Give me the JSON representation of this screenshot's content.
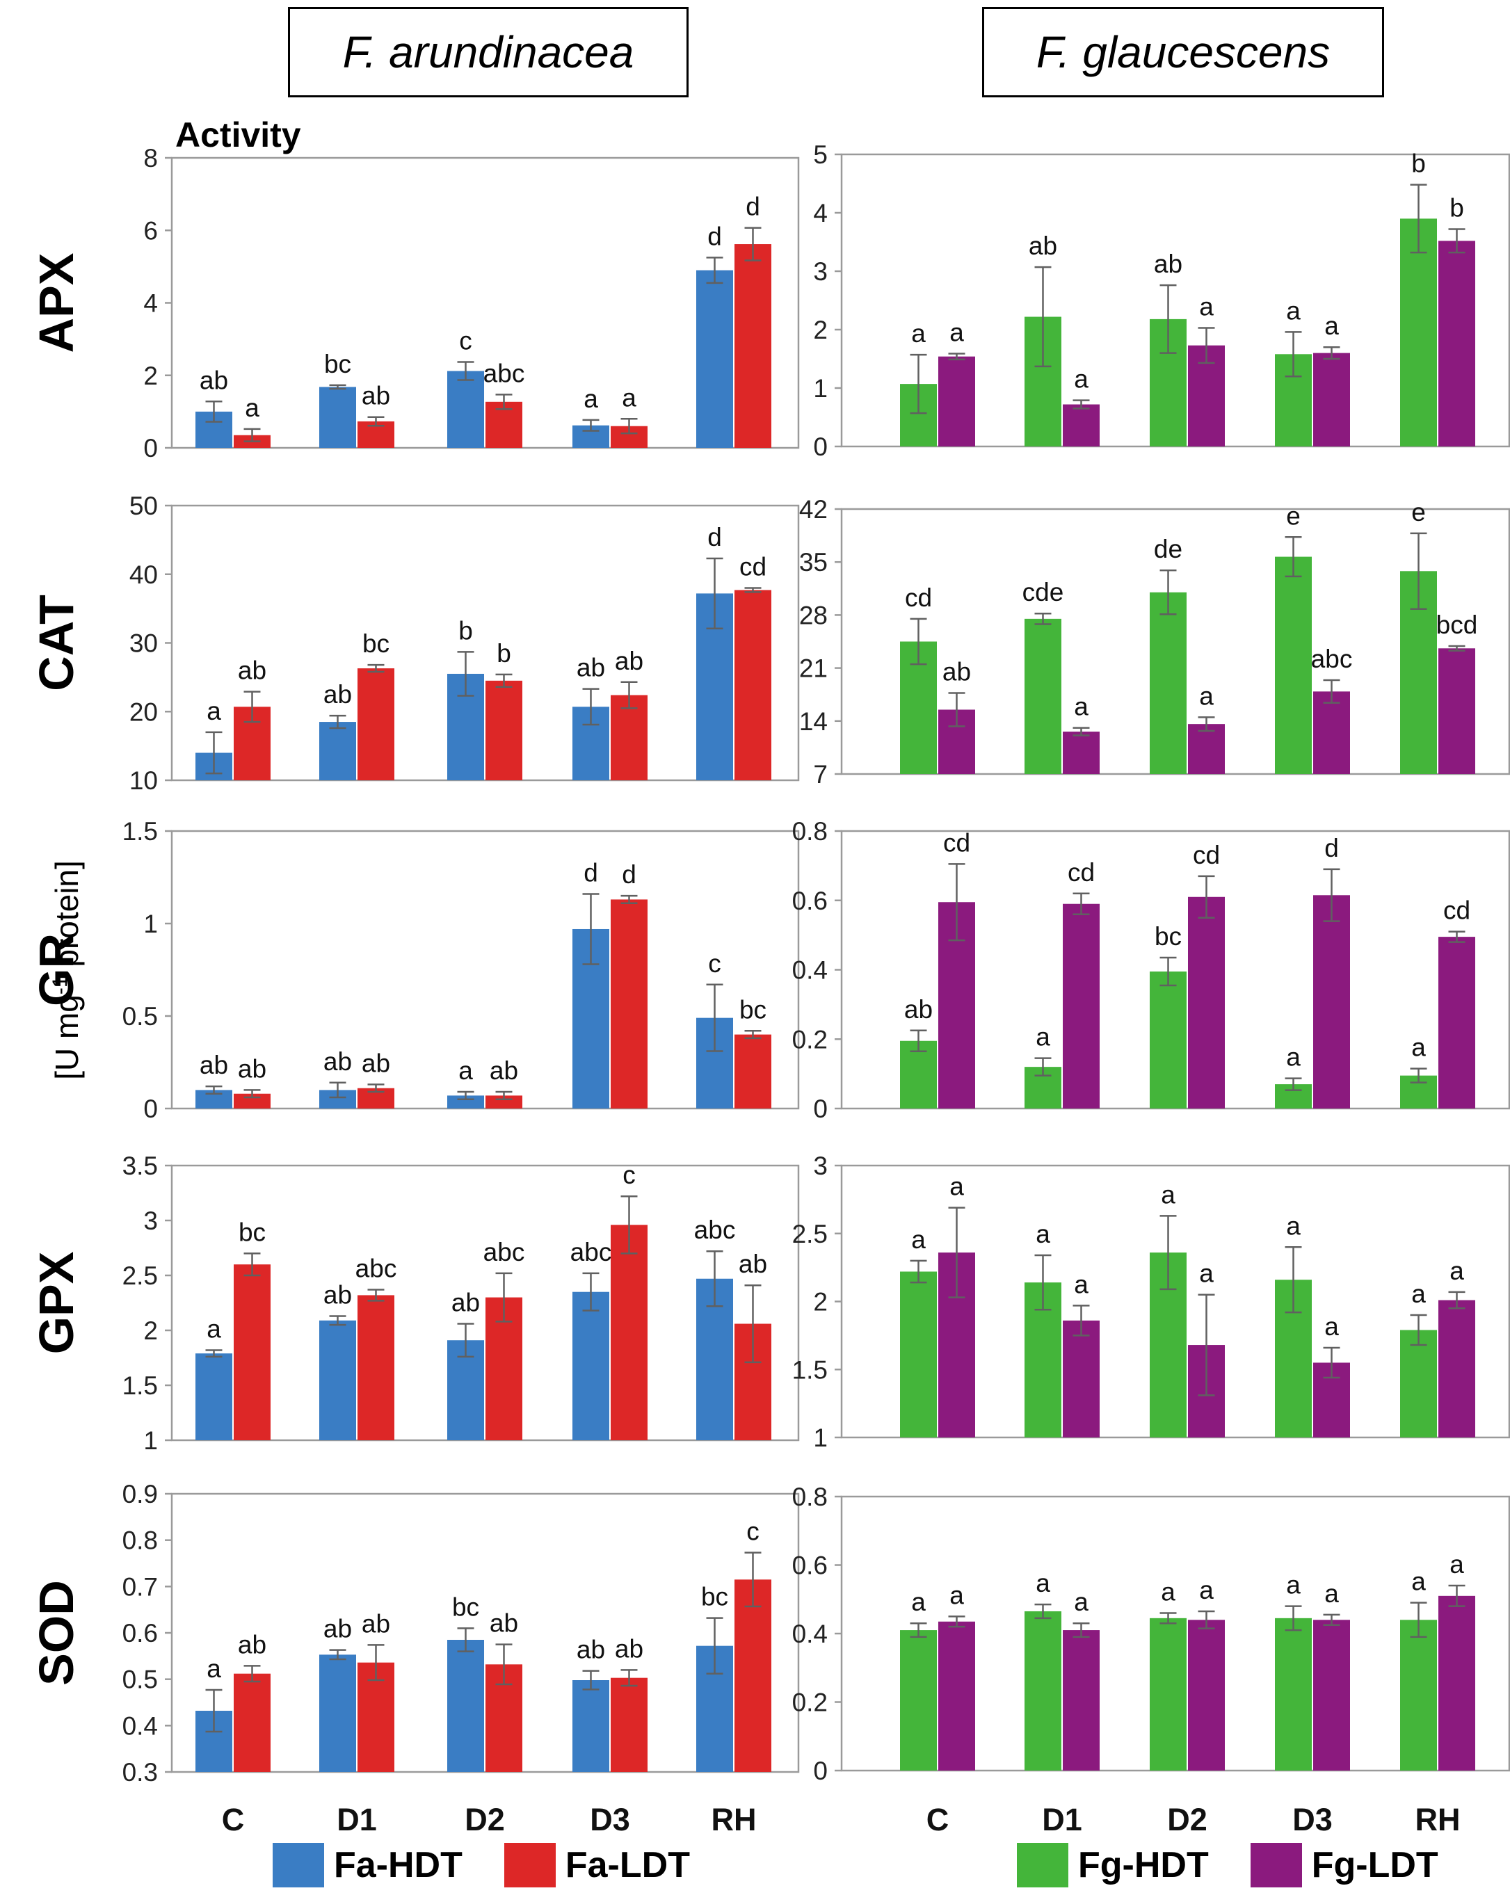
{
  "species": [
    "F. arundinacea",
    "F. glaucescens"
  ],
  "activity_label": "Activity",
  "unit_label": "[U mg-1 protein]",
  "unit_parts": {
    "pre": "[U mg",
    "sup": "-1",
    "post": " protein]"
  },
  "colors": {
    "fa_hdt": "#3a7dc4",
    "fa_ldt": "#dd2727",
    "fg_hdt": "#44b53a",
    "fg_ldt": "#8b1a7e",
    "axis": "#9a9a9a",
    "error": "#606060"
  },
  "legend": [
    {
      "label": "Fa-HDT",
      "color": "#3a7dc4"
    },
    {
      "label": "Fa-LDT",
      "color": "#dd2727"
    },
    {
      "label": "Fg-HDT",
      "color": "#44b53a"
    },
    {
      "label": "Fg-LDT",
      "color": "#8b1a7e"
    }
  ],
  "chart_data": [
    {
      "type": "bar",
      "enzyme": "APX",
      "species": "F. arundinacea",
      "categories": [
        "C",
        "D1",
        "D2",
        "D3",
        "RH"
      ],
      "ylim": [
        0,
        8
      ],
      "yticks": [
        "0",
        "2",
        "4",
        "6",
        "8"
      ],
      "series": [
        {
          "name": "Fa-HDT",
          "values": [
            1.0,
            1.68,
            2.12,
            0.62,
            4.9
          ],
          "errors": [
            0.28,
            0.05,
            0.25,
            0.15,
            0.35
          ],
          "letters": [
            "ab",
            "bc",
            "c",
            "a",
            "d"
          ]
        },
        {
          "name": "Fa-LDT",
          "values": [
            0.35,
            0.73,
            1.27,
            0.6,
            5.62
          ],
          "errors": [
            0.17,
            0.12,
            0.2,
            0.2,
            0.45
          ],
          "letters": [
            "a",
            "ab",
            "abc",
            "a",
            "d"
          ]
        }
      ]
    },
    {
      "type": "bar",
      "enzyme": "APX",
      "species": "F. glaucescens",
      "categories": [
        "C",
        "D1",
        "D2",
        "D3",
        "RH"
      ],
      "ylim": [
        0,
        5
      ],
      "yticks": [
        "0",
        "1",
        "2",
        "3",
        "4",
        "5"
      ],
      "series": [
        {
          "name": "Fg-HDT",
          "values": [
            1.07,
            2.22,
            2.18,
            1.58,
            3.9
          ],
          "errors": [
            0.5,
            0.85,
            0.58,
            0.38,
            0.58
          ],
          "letters": [
            "a",
            "ab",
            "ab",
            "a",
            "b"
          ]
        },
        {
          "name": "Fg-LDT",
          "values": [
            1.54,
            0.72,
            1.73,
            1.6,
            3.52
          ],
          "errors": [
            0.05,
            0.07,
            0.3,
            0.1,
            0.2
          ],
          "letters": [
            "a",
            "a",
            "a",
            "a",
            "b"
          ]
        }
      ]
    },
    {
      "type": "bar",
      "enzyme": "CAT",
      "species": "F. arundinacea",
      "categories": [
        "C",
        "D1",
        "D2",
        "D3",
        "RH"
      ],
      "ylim": [
        10,
        50
      ],
      "yticks": [
        "10",
        "20",
        "30",
        "40",
        "50"
      ],
      "series": [
        {
          "name": "Fa-HDT",
          "values": [
            14.0,
            18.5,
            25.5,
            20.7,
            37.2
          ],
          "errors": [
            3.0,
            0.9,
            3.2,
            2.6,
            5.1
          ],
          "letters": [
            "a",
            "ab",
            "b",
            "ab",
            "d"
          ]
        },
        {
          "name": "Fa-LDT",
          "values": [
            20.7,
            26.3,
            24.5,
            22.4,
            37.7
          ],
          "errors": [
            2.2,
            0.5,
            0.9,
            1.9,
            0.3
          ],
          "letters": [
            "ab",
            "bc",
            "b",
            "ab",
            "cd"
          ]
        }
      ]
    },
    {
      "type": "bar",
      "enzyme": "CAT",
      "species": "F. glaucescens",
      "categories": [
        "C",
        "D1",
        "D2",
        "D3",
        "RH"
      ],
      "ylim": [
        7,
        42
      ],
      "yticks": [
        "7",
        "14",
        "21",
        "28",
        "35",
        "42"
      ],
      "series": [
        {
          "name": "Fg-HDT",
          "values": [
            24.5,
            27.5,
            31.0,
            35.7,
            33.8
          ],
          "errors": [
            3.0,
            0.7,
            2.9,
            2.6,
            5.0
          ],
          "letters": [
            "cd",
            "cde",
            "de",
            "e",
            "e"
          ]
        },
        {
          "name": "Fg-LDT",
          "values": [
            15.5,
            12.6,
            13.6,
            17.9,
            23.6
          ],
          "errors": [
            2.2,
            0.5,
            0.9,
            1.5,
            0.3
          ],
          "letters": [
            "ab",
            "a",
            "a",
            "abc",
            "bcd"
          ]
        }
      ]
    },
    {
      "type": "bar",
      "enzyme": "GR",
      "species": "F. arundinacea",
      "categories": [
        "C",
        "D1",
        "D2",
        "D3",
        "RH"
      ],
      "ylim": [
        0,
        1.5
      ],
      "yticks": [
        "0",
        "0.5",
        "1",
        "1.5"
      ],
      "series": [
        {
          "name": "Fa-HDT",
          "values": [
            0.1,
            0.1,
            0.07,
            0.97,
            0.49
          ],
          "errors": [
            0.02,
            0.04,
            0.02,
            0.19,
            0.18
          ],
          "letters": [
            "ab",
            "ab",
            "a",
            "d",
            "c"
          ]
        },
        {
          "name": "Fa-LDT",
          "values": [
            0.08,
            0.11,
            0.07,
            1.13,
            0.4
          ],
          "errors": [
            0.02,
            0.02,
            0.02,
            0.02,
            0.02
          ],
          "letters": [
            "ab",
            "ab",
            "ab",
            "d",
            "bc"
          ]
        }
      ]
    },
    {
      "type": "bar",
      "enzyme": "GR",
      "species": "F. glaucescens",
      "categories": [
        "C",
        "D1",
        "D2",
        "D3",
        "RH"
      ],
      "ylim": [
        0,
        0.8
      ],
      "yticks": [
        "0",
        "0.2",
        "0.4",
        "0.6",
        "0.8"
      ],
      "series": [
        {
          "name": "Fg-HDT",
          "values": [
            0.195,
            0.12,
            0.395,
            0.07,
            0.095
          ],
          "errors": [
            0.03,
            0.025,
            0.04,
            0.017,
            0.02
          ],
          "letters": [
            "ab",
            "a",
            "bc",
            "a",
            "a"
          ]
        },
        {
          "name": "Fg-LDT",
          "values": [
            0.595,
            0.59,
            0.61,
            0.615,
            0.495
          ],
          "errors": [
            0.11,
            0.03,
            0.06,
            0.075,
            0.015
          ],
          "letters": [
            "cd",
            "cd",
            "cd",
            "d",
            "cd"
          ]
        }
      ]
    },
    {
      "type": "bar",
      "enzyme": "GPX",
      "species": "F. arundinacea",
      "categories": [
        "C",
        "D1",
        "D2",
        "D3",
        "RH"
      ],
      "ylim": [
        1,
        3.5
      ],
      "yticks": [
        "1",
        "1.5",
        "2",
        "2.5",
        "3",
        "3.5"
      ],
      "series": [
        {
          "name": "Fa-HDT",
          "values": [
            1.79,
            2.09,
            1.91,
            2.35,
            2.47
          ],
          "errors": [
            0.03,
            0.04,
            0.15,
            0.17,
            0.25
          ],
          "letters": [
            "a",
            "ab",
            "ab",
            "abc",
            "abc"
          ]
        },
        {
          "name": "Fa-LDT",
          "values": [
            2.6,
            2.32,
            2.3,
            2.96,
            2.06
          ],
          "errors": [
            0.1,
            0.05,
            0.22,
            0.26,
            0.35
          ],
          "letters": [
            "bc",
            "abc",
            "abc",
            "c",
            "ab"
          ]
        }
      ]
    },
    {
      "type": "bar",
      "enzyme": "GPX",
      "species": "F. glaucescens",
      "categories": [
        "C",
        "D1",
        "D2",
        "D3",
        "RH"
      ],
      "ylim": [
        1,
        3
      ],
      "yticks": [
        "1",
        "1.5",
        "2",
        "2.5",
        "3"
      ],
      "series": [
        {
          "name": "Fg-HDT",
          "values": [
            2.22,
            2.14,
            2.36,
            2.16,
            1.79
          ],
          "errors": [
            0.08,
            0.2,
            0.27,
            0.24,
            0.11
          ],
          "letters": [
            "a",
            "a",
            "a",
            "a",
            "a"
          ]
        },
        {
          "name": "Fg-LDT",
          "values": [
            2.36,
            1.86,
            1.68,
            1.55,
            2.01
          ],
          "errors": [
            0.33,
            0.11,
            0.37,
            0.11,
            0.06
          ],
          "letters": [
            "a",
            "a",
            "a",
            "a",
            "a"
          ]
        }
      ]
    },
    {
      "type": "bar",
      "enzyme": "SOD",
      "species": "F. arundinacea",
      "categories": [
        "C",
        "D1",
        "D2",
        "D3",
        "RH"
      ],
      "ylim": [
        0.3,
        0.9
      ],
      "yticks": [
        "0.3",
        "0.4",
        "0.5",
        "0.6",
        "0.7",
        "0.8",
        "0.9"
      ],
      "series": [
        {
          "name": "Fa-HDT",
          "values": [
            0.432,
            0.553,
            0.585,
            0.498,
            0.572
          ],
          "errors": [
            0.045,
            0.01,
            0.025,
            0.02,
            0.06
          ],
          "letters": [
            "a",
            "ab",
            "bc",
            "ab",
            "bc"
          ]
        },
        {
          "name": "Fa-LDT",
          "values": [
            0.512,
            0.536,
            0.532,
            0.503,
            0.715
          ],
          "errors": [
            0.017,
            0.038,
            0.043,
            0.017,
            0.058
          ],
          "letters": [
            "ab",
            "ab",
            "ab",
            "ab",
            "c"
          ]
        }
      ]
    },
    {
      "type": "bar",
      "enzyme": "SOD",
      "species": "F. glaucescens",
      "categories": [
        "C",
        "D1",
        "D2",
        "D3",
        "RH"
      ],
      "ylim": [
        0,
        0.8
      ],
      "yticks": [
        "0",
        "0.2",
        "0.4",
        "0.6",
        "0.8"
      ],
      "series": [
        {
          "name": "Fg-HDT",
          "values": [
            0.41,
            0.465,
            0.445,
            0.445,
            0.44
          ],
          "errors": [
            0.02,
            0.02,
            0.015,
            0.035,
            0.05
          ],
          "letters": [
            "a",
            "a",
            "a",
            "a",
            "a"
          ]
        },
        {
          "name": "Fg-LDT",
          "values": [
            0.435,
            0.41,
            0.44,
            0.44,
            0.51
          ],
          "errors": [
            0.015,
            0.02,
            0.025,
            0.015,
            0.03
          ],
          "letters": [
            "a",
            "a",
            "a",
            "a",
            "a"
          ]
        }
      ]
    }
  ]
}
